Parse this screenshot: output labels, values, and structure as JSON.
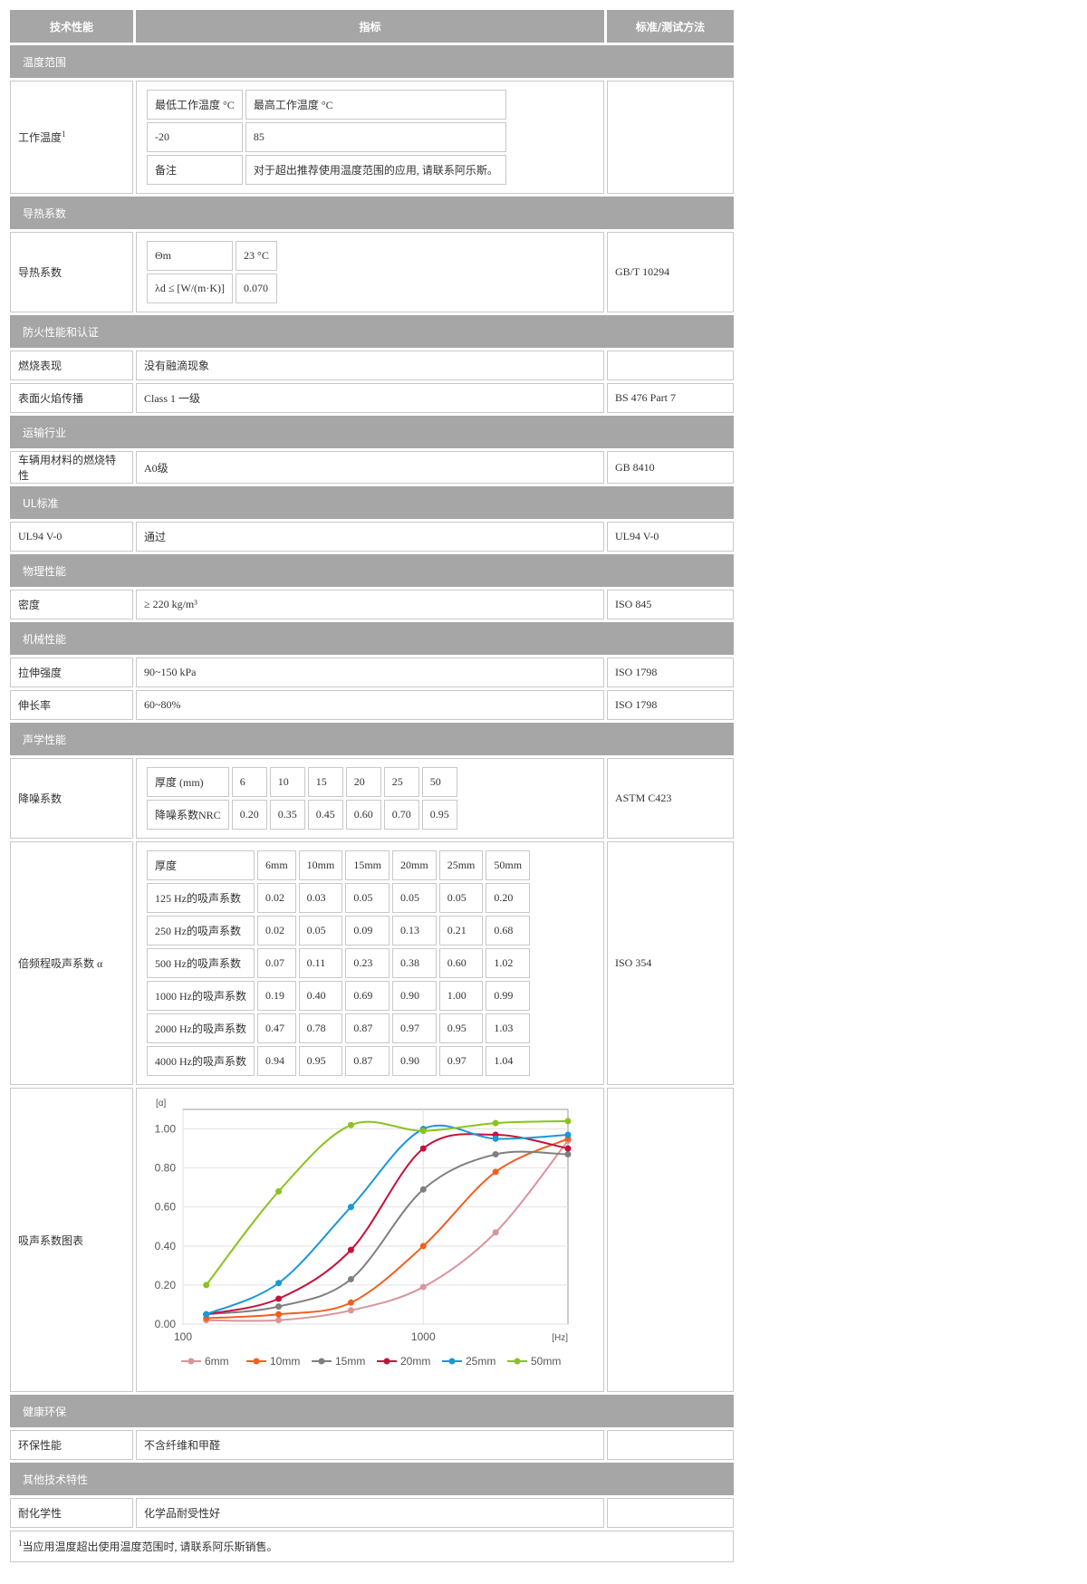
{
  "header": [
    "技术性能",
    "指标",
    "标准/测试方法"
  ],
  "sections": [
    {
      "title": "温度范围",
      "rows": [
        {
          "label": "工作温度",
          "sup": "1",
          "table": [
            [
              "最低工作温度 °C",
              "最高工作温度 °C"
            ],
            [
              "-20",
              "85"
            ],
            [
              "备注",
              "对于超出推荐使用温度范围的应用, 请联系阿乐斯。"
            ]
          ]
        }
      ]
    },
    {
      "title": "导热系数",
      "rows": [
        {
          "label": "导热系数",
          "table": [
            [
              "Θm",
              "23 °C"
            ],
            [
              "λd ≤ [W/(m·K)]",
              "0.070"
            ]
          ],
          "standard": "GB/T 10294"
        }
      ]
    },
    {
      "title": "防火性能和认证",
      "rows": [
        {
          "label": "燃烧表现",
          "value": "没有融滴现象"
        },
        {
          "label": "表面火焰传播",
          "value": "Class 1 一级",
          "standard": "BS 476 Part 7"
        }
      ]
    },
    {
      "title": "运输行业",
      "rows": [
        {
          "label": "车辆用材料的燃烧特性",
          "value": "A0级",
          "standard": "GB 8410"
        }
      ]
    },
    {
      "title": "UL标准",
      "rows": [
        {
          "label": "UL94 V-0",
          "value": "通过",
          "standard": "UL94 V-0"
        }
      ]
    },
    {
      "title": "物理性能",
      "rows": [
        {
          "label": "密度",
          "value": "≥ 220 kg/m³",
          "standard": "ISO 845"
        }
      ]
    },
    {
      "title": "机械性能",
      "rows": [
        {
          "label": "拉伸强度",
          "value": "90~150 kPa",
          "standard": "ISO 1798"
        },
        {
          "label": "伸长率",
          "value": "60~80%",
          "standard": "ISO 1798"
        }
      ]
    },
    {
      "title": "声学性能",
      "rows": [
        {
          "label": "降噪系数",
          "table": [
            [
              "厚度 (mm)",
              "6",
              "10",
              "15",
              "20",
              "25",
              "50"
            ],
            [
              "降噪系数NRC",
              "0.20",
              "0.35",
              "0.45",
              "0.60",
              "0.70",
              "0.95"
            ]
          ],
          "standard": "ASTM C423"
        },
        {
          "label": "倍频程吸声系数 α",
          "table": [
            [
              "厚度",
              "6mm",
              "10mm",
              "15mm",
              "20mm",
              "25mm",
              "50mm"
            ],
            [
              "125 Hz的吸声系数",
              "0.02",
              "0.03",
              "0.05",
              "0.05",
              "0.05",
              "0.20"
            ],
            [
              "250 Hz的吸声系数",
              "0.02",
              "0.05",
              "0.09",
              "0.13",
              "0.21",
              "0.68"
            ],
            [
              "500 Hz的吸声系数",
              "0.07",
              "0.11",
              "0.23",
              "0.38",
              "0.60",
              "1.02"
            ],
            [
              "1000 Hz的吸声系数",
              "0.19",
              "0.40",
              "0.69",
              "0.90",
              "1.00",
              "0.99"
            ],
            [
              "2000 Hz的吸声系数",
              "0.47",
              "0.78",
              "0.87",
              "0.97",
              "0.95",
              "1.03"
            ],
            [
              "4000 Hz的吸声系数",
              "0.94",
              "0.95",
              "0.87",
              "0.90",
              "0.97",
              "1.04"
            ]
          ],
          "standard": "ISO 354"
        },
        {
          "label": "吸声系数图表",
          "chart_data": {
            "type": "line",
            "xlabel": "[Hz]",
            "ylabel": "[α]",
            "log_x": true,
            "grid": true,
            "x": [
              125,
              250,
              500,
              1000,
              2000,
              4000
            ],
            "xlim": [
              100,
              4000
            ],
            "xticks": [
              100,
              1000
            ],
            "ylim": [
              0,
              1.1
            ],
            "yticks": [
              {
                "value": 0,
                "label": "0.00"
              },
              {
                "value": 0.2,
                "label": "0.20"
              },
              {
                "value": 0.4,
                "label": "0.40"
              },
              {
                "value": 0.6,
                "label": "0.60"
              },
              {
                "value": 0.8,
                "label": "0.80"
              },
              {
                "value": 1,
                "label": "1.00"
              }
            ],
            "series": [
              {
                "name": "6mm",
                "color": "#d9959c",
                "values": [
                  0.02,
                  0.02,
                  0.07,
                  0.19,
                  0.47,
                  0.94
                ]
              },
              {
                "name": "10mm",
                "color": "#f0601e",
                "values": [
                  0.03,
                  0.05,
                  0.11,
                  0.4,
                  0.78,
                  0.95
                ]
              },
              {
                "name": "15mm",
                "color": "#7f7f7f",
                "values": [
                  0.05,
                  0.09,
                  0.23,
                  0.69,
                  0.87,
                  0.87
                ]
              },
              {
                "name": "20mm",
                "color": "#c4133b",
                "values": [
                  0.05,
                  0.13,
                  0.38,
                  0.9,
                  0.97,
                  0.9
                ]
              },
              {
                "name": "25mm",
                "color": "#1a98d5",
                "values": [
                  0.05,
                  0.21,
                  0.6,
                  1.0,
                  0.95,
                  0.97
                ]
              },
              {
                "name": "50mm",
                "color": "#8cc21e",
                "values": [
                  0.2,
                  0.68,
                  1.02,
                  0.99,
                  1.03,
                  1.04
                ]
              }
            ]
          }
        }
      ]
    },
    {
      "title": "健康环保",
      "rows": [
        {
          "label": "环保性能",
          "value": "不含纤维和甲醛"
        }
      ]
    },
    {
      "title": "其他技术特性",
      "rows": [
        {
          "label": "耐化学性",
          "value": "化学品耐受性好"
        }
      ]
    }
  ],
  "footnote": {
    "sup": "1",
    "text": "当应用温度超出使用温度范围时, 请联系阿乐斯销售。"
  }
}
